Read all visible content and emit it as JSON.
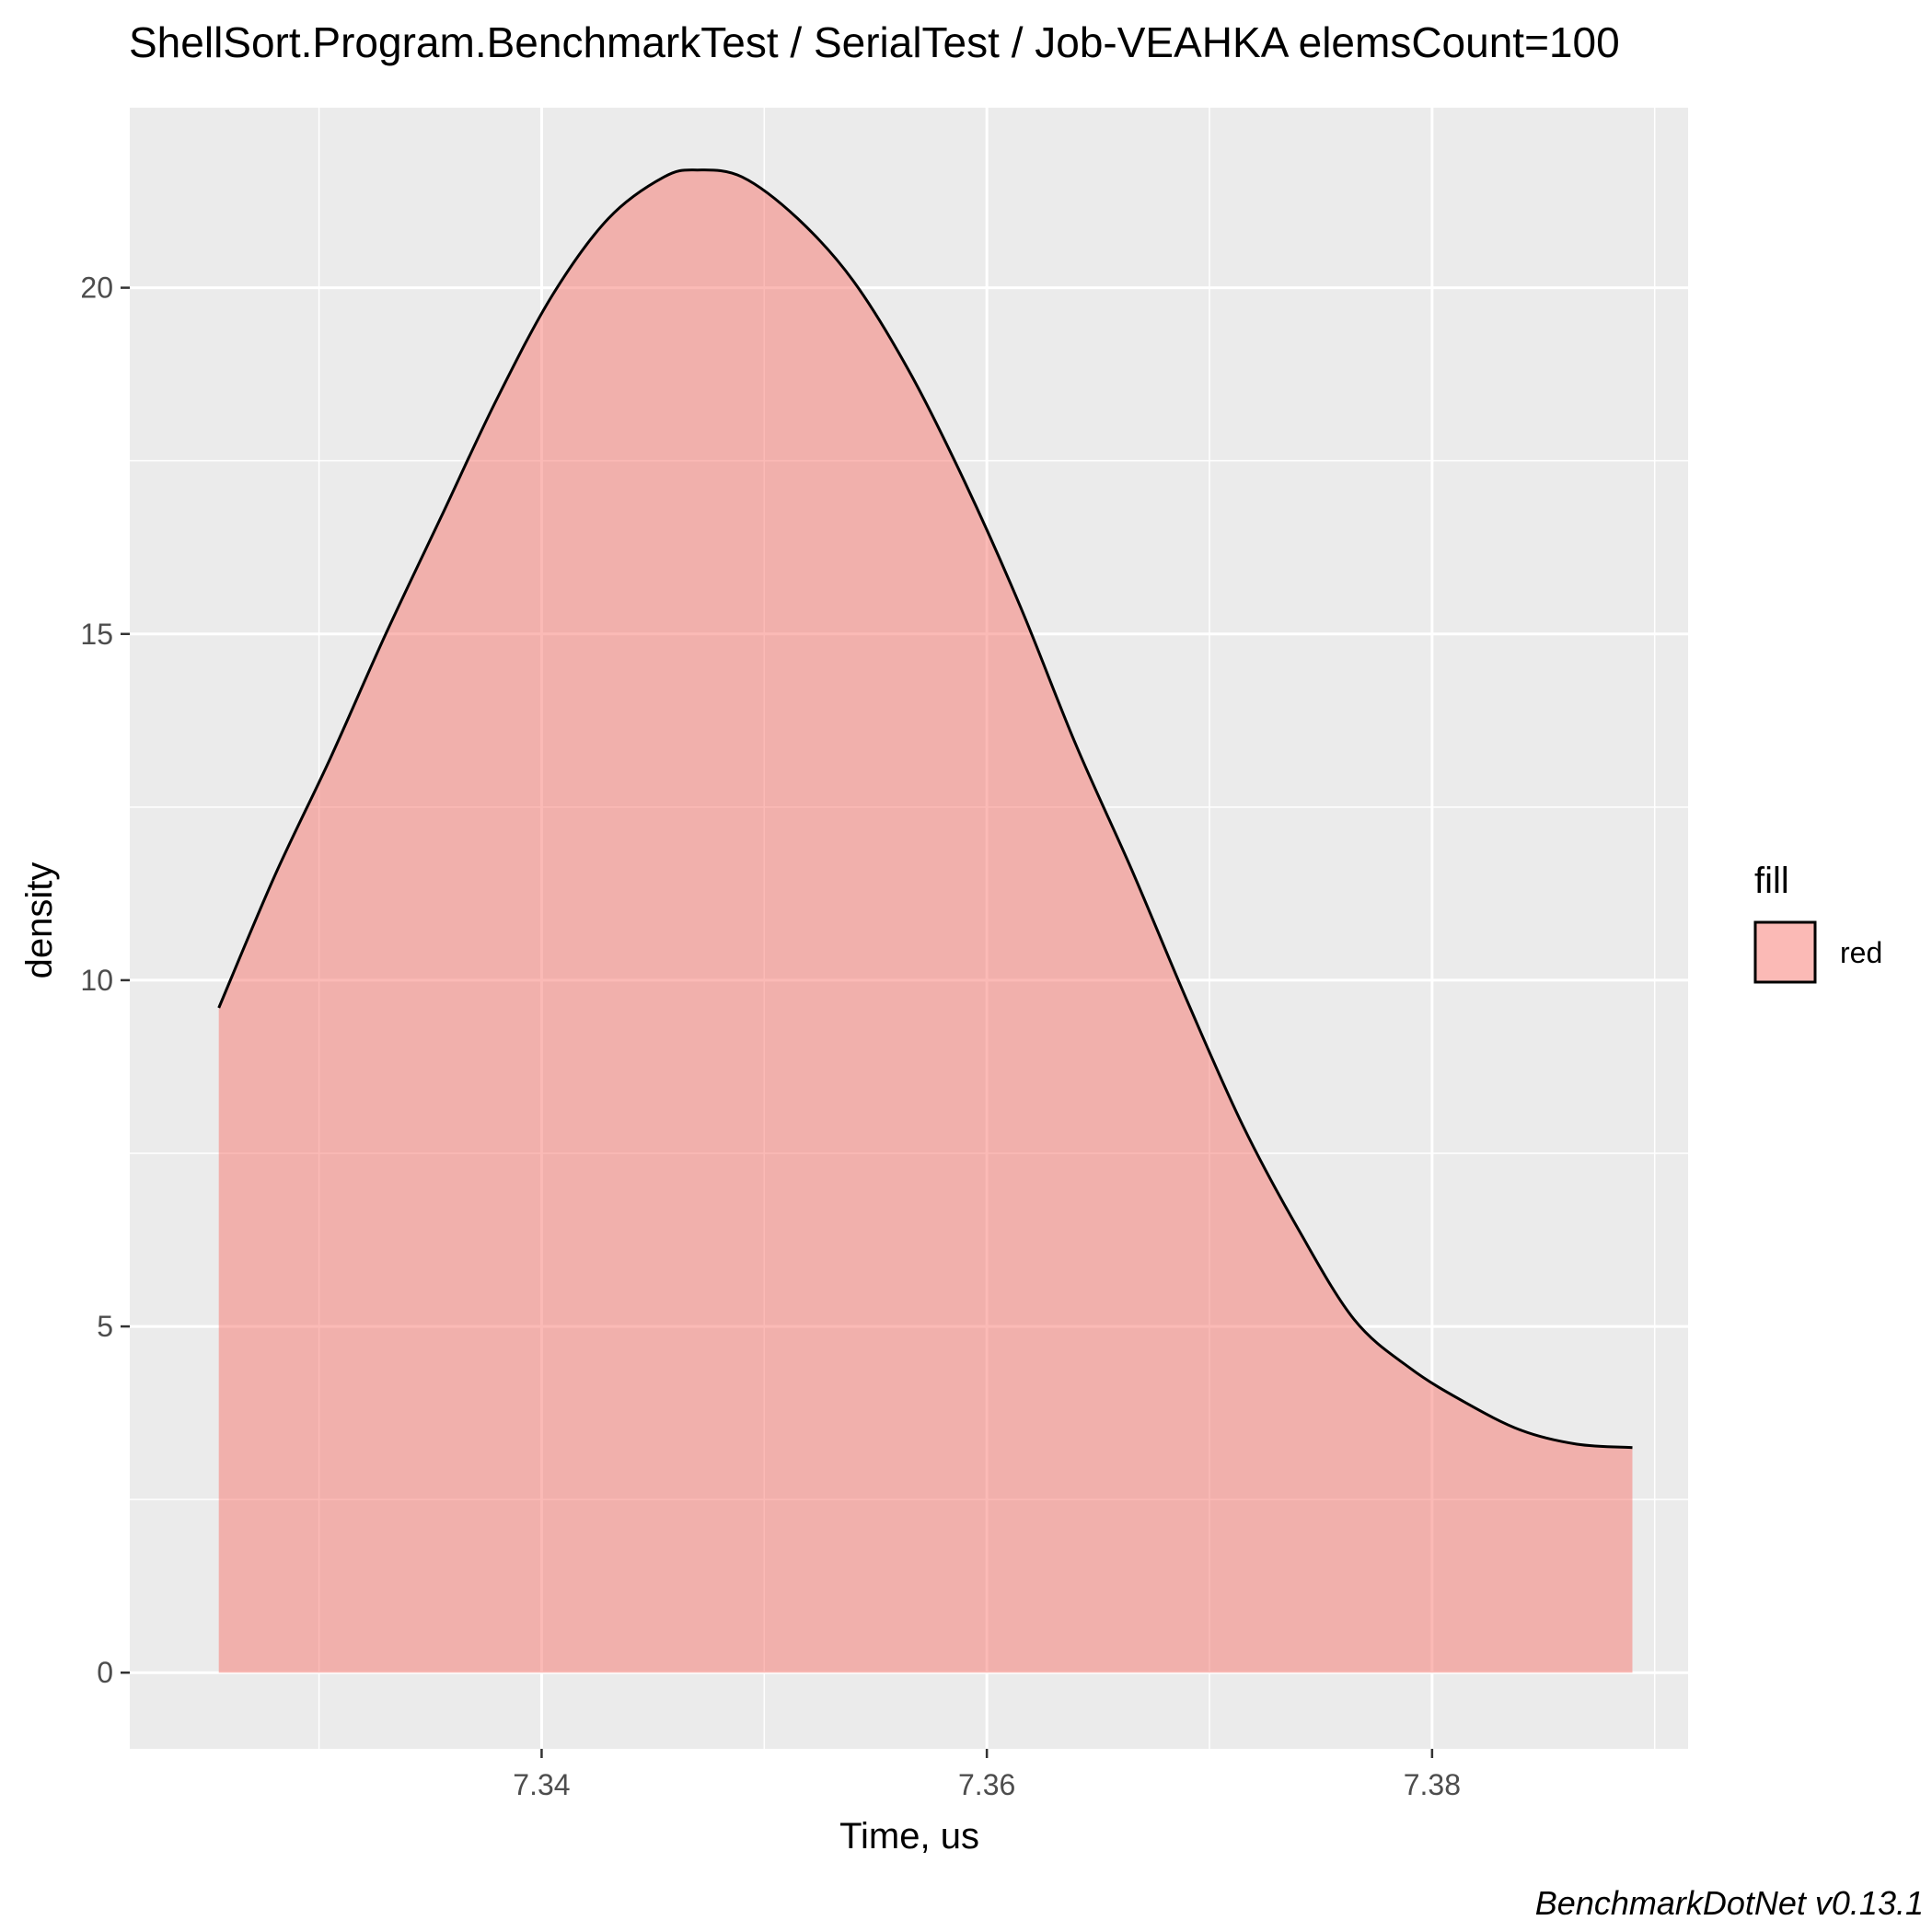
{
  "chart_data": {
    "type": "area",
    "title": "ShellSort.Program.BenchmarkTest / SerialTest / Job-VEAHKA elemsCount=100",
    "xlabel": "Time, us",
    "ylabel": "density",
    "caption": "BenchmarkDotNet v0.13.1",
    "xlim": [
      7.3215,
      7.3915
    ],
    "ylim": [
      -1.1,
      22.6
    ],
    "x_ticks": [
      7.34,
      7.36,
      7.38
    ],
    "x_tick_labels": [
      "7.34",
      "7.36",
      "7.38"
    ],
    "x_minor_ticks": [
      7.33,
      7.35,
      7.37,
      7.39
    ],
    "y_ticks": [
      0,
      5,
      10,
      15,
      20
    ],
    "y_tick_labels": [
      "0",
      "5",
      "10",
      "15",
      "20"
    ],
    "y_minor_ticks": [
      2.5,
      7.5,
      12.5,
      17.5
    ],
    "grid": true,
    "background_color": "#ebebeb",
    "fill_color": "#f8766d",
    "fill_opacity": 0.5,
    "line_color": "#000000",
    "legend": {
      "title": "fill",
      "position": "right",
      "entries": [
        {
          "label": "red",
          "color": "#f8766d"
        }
      ]
    },
    "series": [
      {
        "x": [
          7.3255,
          7.328,
          7.3305,
          7.333,
          7.3355,
          7.338,
          7.3405,
          7.343,
          7.3455,
          7.347,
          7.349,
          7.3515,
          7.354,
          7.3565,
          7.359,
          7.3615,
          7.364,
          7.3665,
          7.369,
          7.3715,
          7.374,
          7.3765,
          7.379,
          7.3815,
          7.384,
          7.3865,
          7.389
        ],
        "values": [
          9.6,
          11.5,
          13.2,
          15.0,
          16.7,
          18.4,
          19.9,
          21.0,
          21.6,
          21.7,
          21.6,
          21.0,
          20.1,
          18.8,
          17.2,
          15.4,
          13.4,
          11.6,
          9.7,
          7.9,
          6.4,
          5.1,
          4.4,
          3.9,
          3.5,
          3.3,
          3.25
        ]
      }
    ]
  }
}
